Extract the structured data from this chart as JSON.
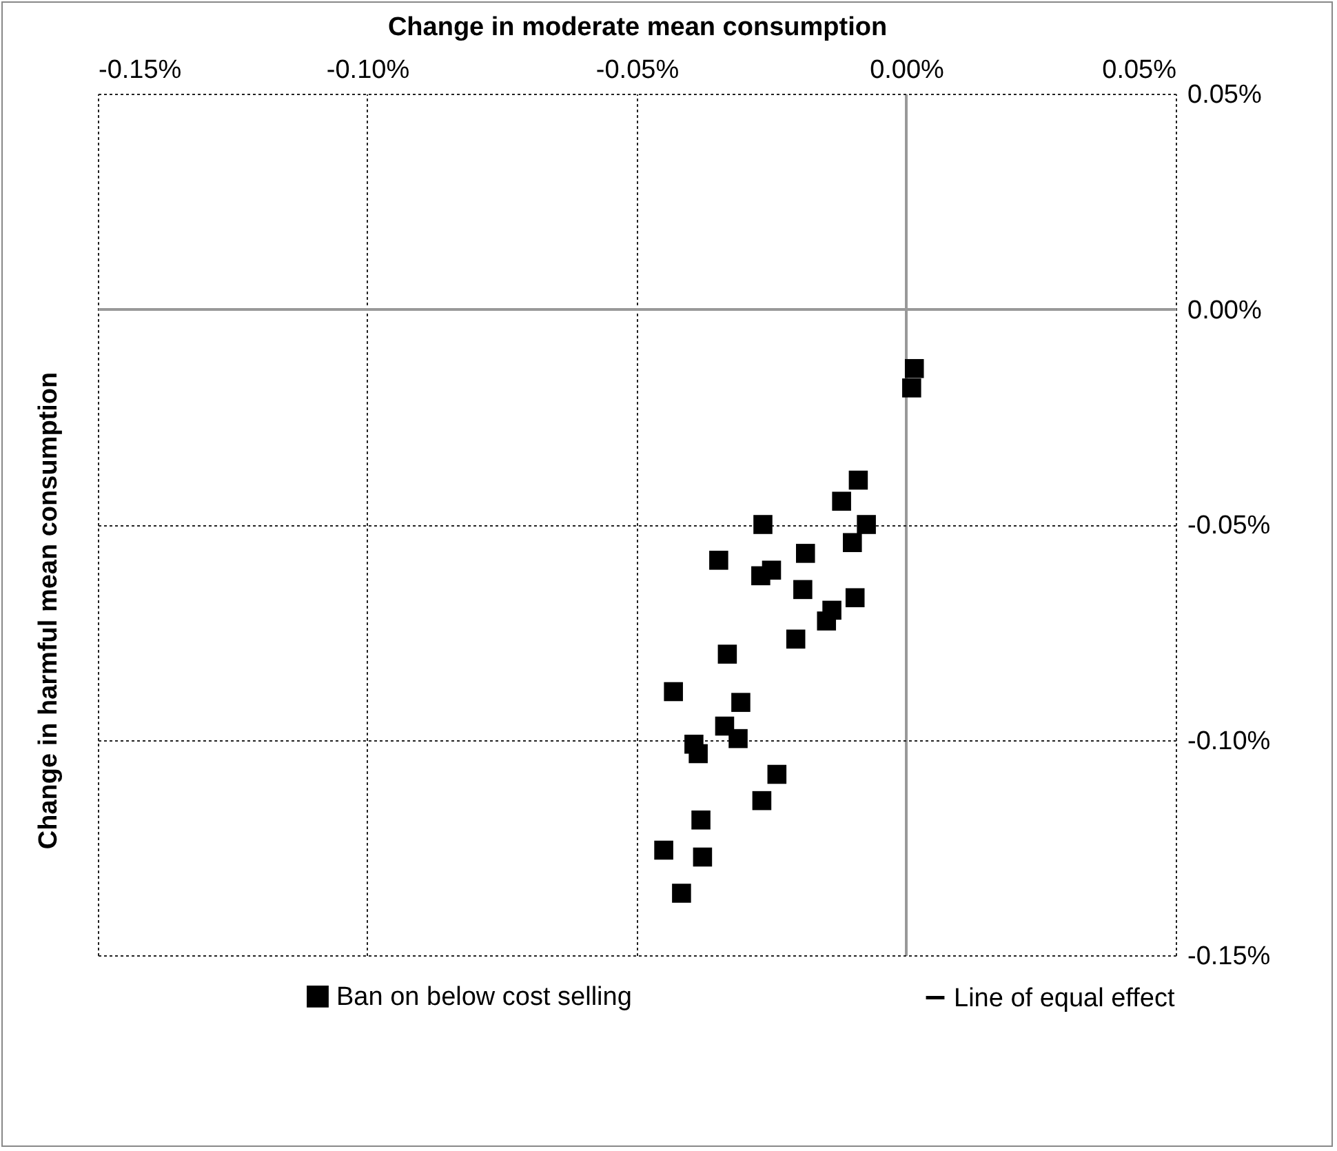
{
  "chart_data": {
    "type": "scatter",
    "xlabel": "Change in moderate mean consumption",
    "ylabel": "Change in harmful mean consumption",
    "xlim": [
      -0.15,
      0.05
    ],
    "ylim": [
      -0.15,
      0.05
    ],
    "xticks": [
      {
        "value": -0.15,
        "label": "-0.15%"
      },
      {
        "value": -0.1,
        "label": "-0.10%"
      },
      {
        "value": -0.05,
        "label": "-0.05%"
      },
      {
        "value": 0,
        "label": "0.00%"
      },
      {
        "value": 0.05,
        "label": "0.05%"
      }
    ],
    "yticks": [
      {
        "value": -0.15,
        "label": "-0.15%"
      },
      {
        "value": -0.1,
        "label": "-0.10%"
      },
      {
        "value": -0.05,
        "label": "-0.05%"
      },
      {
        "value": 0,
        "label": "0.00%"
      },
      {
        "value": 0.05,
        "label": "0.05%"
      }
    ],
    "grid": true,
    "legend": "bottom",
    "marker": "square",
    "series": [
      {
        "name": "Ban on below cost selling",
        "color": "#000000",
        "x": [
          0.0015,
          0.001,
          -0.0089,
          -0.012,
          -0.0074,
          -0.0266,
          -0.01,
          -0.0348,
          -0.0187,
          -0.025,
          -0.027,
          -0.0192,
          -0.0095,
          -0.0138,
          -0.0148,
          -0.0205,
          -0.0332,
          -0.0432,
          -0.0307,
          -0.0337,
          -0.0394,
          -0.0312,
          -0.0386,
          -0.024,
          -0.0268,
          -0.0381,
          -0.045,
          -0.0378,
          -0.0417
        ],
        "values": [
          -0.0138,
          -0.0183,
          -0.0397,
          -0.0446,
          -0.05,
          -0.05,
          -0.0542,
          -0.0583,
          -0.0567,
          -0.0606,
          -0.0619,
          -0.0651,
          -0.067,
          -0.0699,
          -0.0724,
          -0.0766,
          -0.0801,
          -0.0888,
          -0.0913,
          -0.0968,
          -0.101,
          -0.0997,
          -0.1032,
          -0.108,
          -0.1141,
          -0.1186,
          -0.1256,
          -0.1272,
          -0.1356
        ]
      },
      {
        "name": "Line of equal effect",
        "type": "line",
        "color": "#000000"
      }
    ]
  }
}
